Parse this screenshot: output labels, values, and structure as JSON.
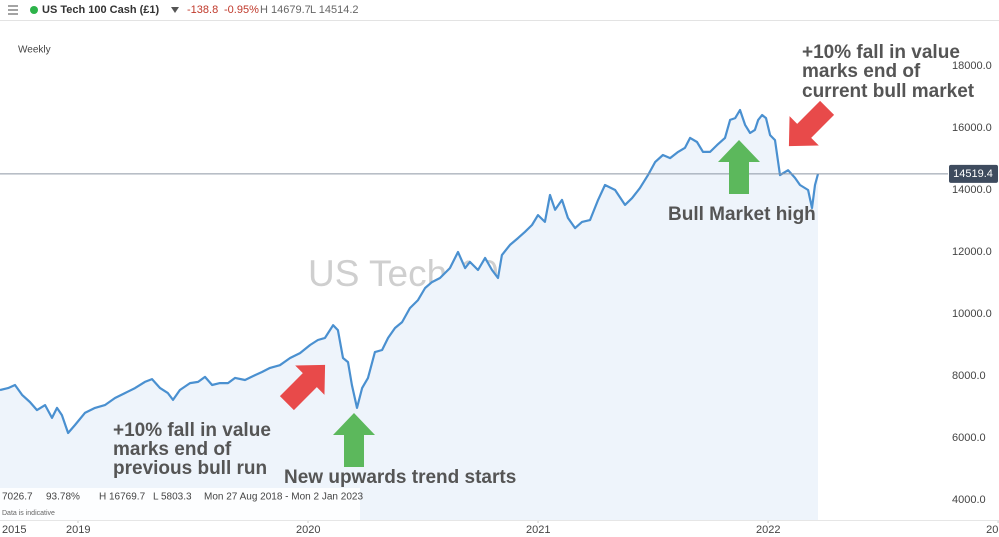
{
  "toolbar": {
    "change": "-138.8",
    "change_pct": "-0.95%",
    "high": "H 14679.7",
    "low": "L 14514.2"
  },
  "footer": {
    "last": "7026.7",
    "pct": "93.78%",
    "high": "H 16769.7",
    "low": "L 5803.3",
    "range": "Mon 27 Aug 2018 - Mon 2 Jan 2023",
    "note": "Data is indicative"
  },
  "chart_data": {
    "type": "line",
    "title": "US Tech 100 Cash (£1)",
    "interval": "Weekly",
    "x": [
      2018.661,
      2018.696,
      2018.726,
      2018.757,
      2018.791,
      2018.822,
      2018.857,
      2018.887,
      2018.909,
      2018.93,
      2018.957,
      2018.987,
      2019.03,
      2019.074,
      2019.117,
      2019.161,
      2019.204,
      2019.248,
      2019.291,
      2019.322,
      2019.357,
      2019.391,
      2019.413,
      2019.443,
      2019.487,
      2019.522,
      2019.552,
      2019.583,
      2019.617,
      2019.652,
      2019.683,
      2019.726,
      2019.77,
      2019.8,
      2019.835,
      2019.878,
      2019.922,
      2019.965,
      2020.009,
      2020.043,
      2020.074,
      2020.109,
      2020.13,
      2020.152,
      2020.174,
      2020.191,
      2020.213,
      2020.235,
      2020.261,
      2020.291,
      2020.322,
      2020.348,
      2020.378,
      2020.409,
      2020.443,
      2020.478,
      2020.509,
      2020.539,
      2020.574,
      2020.617,
      2020.652,
      2020.683,
      2020.704,
      2020.739,
      2020.77,
      2020.8,
      2020.826,
      2020.843,
      2020.878,
      2020.913,
      2020.943,
      2020.974,
      2021.0,
      2021.03,
      2021.052,
      2021.074,
      2021.104,
      2021.13,
      2021.161,
      2021.191,
      2021.226,
      2021.261,
      2021.291,
      2021.335,
      2021.378,
      2021.409,
      2021.443,
      2021.478,
      2021.509,
      2021.543,
      2021.574,
      2021.609,
      2021.639,
      2021.661,
      2021.691,
      2021.717,
      2021.748,
      2021.778,
      2021.813,
      2021.835,
      2021.857,
      2021.878,
      2021.9,
      2021.922,
      2021.943,
      2021.957,
      2021.974,
      2021.991,
      2022.009,
      2022.03,
      2022.052,
      2022.087,
      2022.117,
      2022.139,
      2022.174,
      2022.191,
      2022.204,
      2022.217
    ],
    "series": [
      {
        "name": "US Tech 100 Cash (£1)",
        "color": "#4a90d0",
        "area_color": "#eef4fb",
        "values": [
          7550,
          7610,
          7710,
          7390,
          7160,
          6900,
          7060,
          6650,
          6970,
          6740,
          6160,
          6420,
          6810,
          6970,
          7060,
          7290,
          7450,
          7610,
          7810,
          7900,
          7610,
          7450,
          7230,
          7550,
          7770,
          7810,
          7970,
          7710,
          7770,
          7770,
          7940,
          7870,
          8030,
          8130,
          8260,
          8350,
          8580,
          8740,
          9000,
          9160,
          9230,
          9640,
          9480,
          8580,
          8450,
          7710,
          6970,
          7610,
          7940,
          8770,
          8840,
          9230,
          9550,
          9740,
          10190,
          10450,
          10840,
          11030,
          11160,
          11480,
          12000,
          11480,
          11680,
          11420,
          11810,
          11420,
          11160,
          11900,
          12230,
          12450,
          12650,
          12870,
          13190,
          12970,
          13840,
          13360,
          13680,
          13100,
          12770,
          12970,
          13030,
          13680,
          14160,
          14000,
          13520,
          13740,
          14060,
          14480,
          14900,
          15130,
          15030,
          15230,
          15360,
          15680,
          15550,
          15230,
          15230,
          15450,
          15680,
          16260,
          16320,
          16580,
          16100,
          15840,
          15940,
          16260,
          16420,
          16320,
          15770,
          15610,
          14480,
          14640,
          14390,
          14160,
          14000,
          13420,
          14160,
          14519.4
        ]
      }
    ],
    "current_price": 14519.4,
    "ylim": [
      3355,
      19484
    ],
    "yticks": [
      {
        "value": 18000,
        "label": "18000.0"
      },
      {
        "value": 16000,
        "label": "16000.0"
      },
      {
        "value": 14000,
        "label": "14000.0"
      },
      {
        "value": 12000,
        "label": "12000.0"
      },
      {
        "value": 10000,
        "label": "10000.0"
      },
      {
        "value": 8000,
        "label": "8000.0"
      },
      {
        "value": 6000,
        "label": "6000.0"
      },
      {
        "value": 4000,
        "label": "4000.0"
      }
    ],
    "xlim": [
      2018.661,
      2023.004
    ],
    "xticks": [
      2019,
      2020,
      2021,
      2022,
      {
        "value": 2023,
        "label": "20"
      }
    ],
    "x_start_label": "2015",
    "grid": false,
    "annotations": [
      {
        "lines": [
          "+10% fall in value",
          "marks end of",
          "current bull market"
        ]
      },
      {
        "lines": [
          "Bull Market high"
        ]
      },
      {
        "lines": [
          "+10% fall in value",
          "marks end of",
          "previous bull run"
        ]
      },
      {
        "lines": [
          "New upwards trend starts"
        ]
      }
    ]
  }
}
